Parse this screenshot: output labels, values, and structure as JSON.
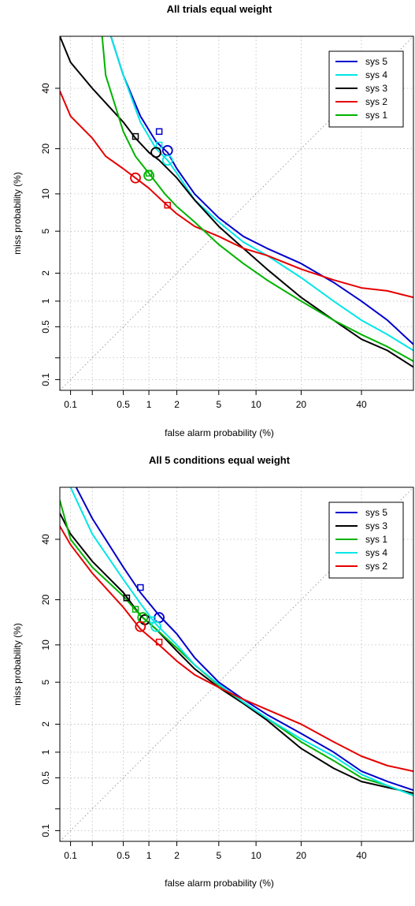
{
  "chart_data": [
    {
      "type": "line",
      "title": "All trials equal weight",
      "xlabel": "false alarm probability (%)",
      "ylabel": "miss probability (%)",
      "x_scale": "probit",
      "y_scale": "probit",
      "xlim": [
        0.07,
        60
      ],
      "ylim": [
        0.07,
        60
      ],
      "x_ticks": [
        0.1,
        0.2,
        0.5,
        1,
        2,
        5,
        10,
        20,
        40
      ],
      "x_tick_labels": [
        "0.1",
        "",
        "0.5",
        "1",
        "2",
        "5",
        "10",
        "20",
        "40"
      ],
      "y_ticks": [
        0.1,
        0.2,
        0.5,
        1,
        2,
        5,
        10,
        20,
        40
      ],
      "y_tick_labels": [
        "0.1",
        "",
        "0.5",
        "1",
        "2",
        "5",
        "10",
        "20",
        "40"
      ],
      "grid": true,
      "diagonal": true,
      "legend_position": "top-right",
      "series": [
        {
          "name": "sys 5",
          "color": "#0000cc",
          "x": [
            0.35,
            0.5,
            0.8,
            1.2,
            1.6,
            2,
            3,
            5,
            8,
            12,
            20,
            30,
            40,
            50,
            60
          ],
          "y": [
            60,
            45,
            30,
            22,
            19,
            15,
            10,
            6.5,
            4.5,
            3.5,
            2.5,
            1.6,
            1.0,
            0.6,
            0.3
          ],
          "min_dcf": [
            1.6,
            19.5
          ],
          "act_dcf": [
            1.3,
            25
          ]
        },
        {
          "name": "sys 4",
          "color": "#00e6e6",
          "x": [
            0.35,
            0.5,
            0.8,
            1.2,
            1.6,
            2,
            3,
            5,
            8,
            12,
            20,
            30,
            40,
            50,
            60
          ],
          "y": [
            60,
            45,
            28,
            20,
            17,
            14,
            9,
            6,
            4,
            3,
            1.8,
            1.0,
            0.6,
            0.4,
            0.25
          ],
          "min_dcf": [
            1.6,
            17
          ],
          "act_dcf": [
            1.3,
            21
          ]
        },
        {
          "name": "sys 3",
          "color": "#000000",
          "x": [
            0.07,
            0.1,
            0.2,
            0.5,
            0.7,
            1,
            1.3,
            2,
            3,
            5,
            8,
            12,
            20,
            30,
            40,
            50,
            60
          ],
          "y": [
            60,
            50,
            40,
            28,
            23,
            19,
            17,
            13,
            9,
            5.5,
            3.5,
            2.2,
            1.1,
            0.6,
            0.35,
            0.25,
            0.15
          ],
          "min_dcf": [
            1.2,
            19
          ],
          "act_dcf": [
            0.7,
            23.5
          ]
        },
        {
          "name": "sys 2",
          "color": "#e60000",
          "x": [
            0.07,
            0.1,
            0.2,
            0.3,
            0.5,
            0.7,
            1,
            1.5,
            2,
            3,
            5,
            8,
            12,
            20,
            30,
            40,
            50,
            60
          ],
          "y": [
            39,
            30,
            23,
            18,
            15,
            13,
            11,
            8.5,
            7,
            5.5,
            4.5,
            3.5,
            3,
            2.2,
            1.7,
            1.4,
            1.3,
            1.1
          ],
          "min_dcf": [
            0.7,
            13
          ],
          "act_dcf": [
            1.6,
            8.2
          ]
        },
        {
          "name": "sys 1",
          "color": "#00b300",
          "x": [
            0.27,
            0.3,
            0.5,
            0.7,
            1,
            1.5,
            2,
            3,
            5,
            8,
            12,
            20,
            30,
            40,
            50,
            60
          ],
          "y": [
            60,
            45,
            25,
            18,
            14,
            10,
            8,
            6,
            3.8,
            2.5,
            1.7,
            1.0,
            0.6,
            0.4,
            0.28,
            0.18
          ],
          "min_dcf": [
            1.0,
            13.5
          ],
          "act_dcf": [
            1.0,
            14
          ]
        }
      ]
    },
    {
      "type": "line",
      "title": "All 5 conditions equal weight",
      "xlabel": "false alarm probability (%)",
      "ylabel": "miss probability (%)",
      "x_scale": "probit",
      "y_scale": "probit",
      "xlim": [
        0.07,
        60
      ],
      "ylim": [
        0.07,
        60
      ],
      "x_ticks": [
        0.1,
        0.2,
        0.5,
        1,
        2,
        5,
        10,
        20,
        40
      ],
      "x_tick_labels": [
        "0.1",
        "",
        "0.5",
        "1",
        "2",
        "5",
        "10",
        "20",
        "40"
      ],
      "y_ticks": [
        0.1,
        0.2,
        0.5,
        1,
        2,
        5,
        10,
        20,
        40
      ],
      "y_tick_labels": [
        "0.1",
        "",
        "0.5",
        "1",
        "2",
        "5",
        "10",
        "20",
        "40"
      ],
      "grid": true,
      "diagonal": true,
      "legend_position": "top-right",
      "series": [
        {
          "name": "sys 5",
          "color": "#0000cc",
          "x": [
            0.12,
            0.2,
            0.5,
            0.8,
            1.3,
            2,
            3,
            5,
            8,
            12,
            20,
            30,
            40,
            50,
            60
          ],
          "y": [
            60,
            48,
            30,
            22,
            16,
            12,
            8,
            5,
            3.5,
            2.5,
            1.6,
            1.0,
            0.6,
            0.45,
            0.35
          ],
          "min_dcf": [
            1.3,
            15.5
          ],
          "act_dcf": [
            0.8,
            23.5
          ]
        },
        {
          "name": "sys 3",
          "color": "#000000",
          "x": [
            0.07,
            0.1,
            0.2,
            0.5,
            0.8,
            1.2,
            2,
            3,
            5,
            8,
            12,
            20,
            30,
            40,
            50,
            60
          ],
          "y": [
            50,
            42,
            32,
            22,
            16,
            13,
            9,
            6.5,
            4.5,
            3.2,
            2.2,
            1.1,
            0.65,
            0.45,
            0.38,
            0.32
          ],
          "min_dcf": [
            0.9,
            15
          ],
          "act_dcf": [
            0.55,
            20.5
          ]
        },
        {
          "name": "sys 1",
          "color": "#00b300",
          "x": [
            0.07,
            0.1,
            0.2,
            0.5,
            0.8,
            1.2,
            2,
            3,
            5,
            8,
            12,
            20,
            30,
            40,
            50,
            60
          ],
          "y": [
            55,
            40,
            30,
            21,
            16,
            13,
            9.5,
            7,
            4.7,
            3.3,
            2.3,
            1.3,
            0.8,
            0.5,
            0.4,
            0.3
          ],
          "min_dcf": [
            0.85,
            15.5
          ],
          "act_dcf": [
            0.7,
            17.5
          ]
        },
        {
          "name": "sys 4",
          "color": "#00e6e6",
          "x": [
            0.1,
            0.2,
            0.5,
            0.8,
            1.2,
            2,
            3,
            5,
            8,
            12,
            20,
            30,
            40,
            50,
            60
          ],
          "y": [
            60,
            42,
            26,
            19,
            14,
            10,
            7,
            4.8,
            3.3,
            2.3,
            1.4,
            0.9,
            0.55,
            0.4,
            0.3
          ],
          "min_dcf": [
            1.2,
            13.5
          ],
          "act_dcf": [
            1.1,
            15
          ]
        },
        {
          "name": "sys 2",
          "color": "#e60000",
          "x": [
            0.07,
            0.1,
            0.2,
            0.5,
            0.8,
            1.3,
            2,
            3,
            5,
            8,
            12,
            20,
            30,
            40,
            50,
            60
          ],
          "y": [
            45,
            38,
            28,
            18,
            13,
            10,
            7.5,
            5.8,
            4.5,
            3.5,
            2.8,
            2.0,
            1.3,
            0.9,
            0.7,
            0.6
          ],
          "min_dcf": [
            0.8,
            13.5
          ],
          "act_dcf": [
            1.3,
            10.5
          ]
        }
      ]
    }
  ]
}
